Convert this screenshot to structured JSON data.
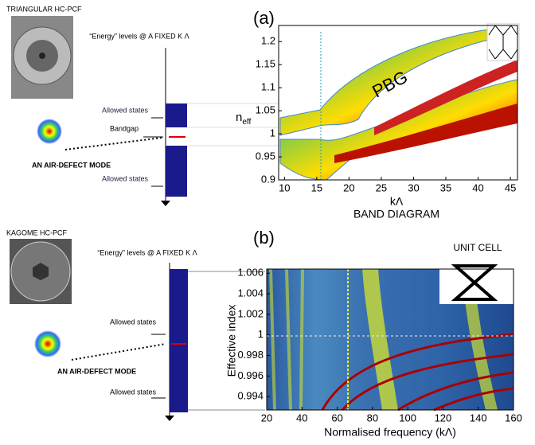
{
  "panels": [
    {
      "label": "(a)",
      "fiber": "TRIANGULAR HC-PCF",
      "energy_title": "“Energy” levels @ A FIXED K Λ",
      "allowed_top": "Allowed states",
      "bandgap": "Bandgap",
      "allowed_bottom": "Allowed states",
      "mode": "AN AIR-DEFECT MODE",
      "plot": {
        "ylabel": {
          "main": "n",
          "sub": "eff"
        },
        "xlabel": "kΛ",
        "caption": "BAND DIAGRAM",
        "annotation": "PBG",
        "xlim": [
          9.1,
          46.1
        ],
        "xticks": [
          10,
          15,
          20,
          25,
          30,
          35,
          40,
          45
        ],
        "ylim": [
          0.9,
          1.235
        ],
        "yticks": [
          0.9,
          0.95,
          1,
          1.05,
          1.1,
          1.15,
          1.2
        ]
      }
    },
    {
      "label": "(b)",
      "fiber": "KAGOME  HC-PCF",
      "energy_title": "“Energy” levels @ A FIXED K Λ",
      "allowed_top": "Allowed states",
      "allowed_bottom": "Allowed states",
      "mode": "AN AIR-DEFECT MODE",
      "plot": {
        "ylabel": "Effective index",
        "xlabel": "Normalised frequency (kΛ)",
        "inset": "UNIT CELL",
        "xlim": [
          20,
          160
        ],
        "xticks": [
          20,
          40,
          60,
          80,
          100,
          120,
          140,
          160
        ],
        "ylim": [
          0.9927,
          1.0064
        ],
        "yticks": [
          0.994,
          0.996,
          0.998,
          1,
          1.002,
          1.004,
          1.006
        ]
      }
    }
  ]
}
